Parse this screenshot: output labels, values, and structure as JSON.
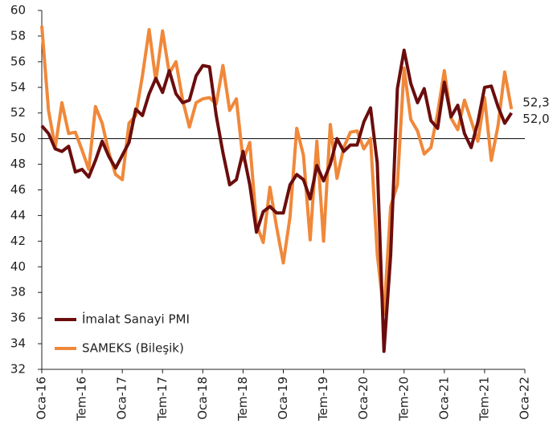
{
  "chart_data": {
    "type": "line",
    "categories": [
      "Oca-16",
      null,
      null,
      null,
      null,
      null,
      "Tem-16",
      null,
      null,
      null,
      null,
      null,
      "Oca-17",
      null,
      null,
      null,
      null,
      null,
      "Tem-17",
      null,
      null,
      null,
      null,
      null,
      "Oca-18",
      null,
      null,
      null,
      null,
      null,
      "Tem-18",
      null,
      null,
      null,
      null,
      null,
      "Oca-19",
      null,
      null,
      null,
      null,
      null,
      "Tem-19",
      null,
      null,
      null,
      null,
      null,
      "Oca-20",
      null,
      null,
      null,
      null,
      null,
      "Tem-20",
      null,
      null,
      null,
      null,
      null,
      "Oca-21",
      null,
      null,
      null,
      null,
      null,
      "Tem-21",
      null,
      null,
      null,
      null,
      null,
      "Oca-22"
    ],
    "series": [
      {
        "name": "İmalat Sanayi PMI",
        "color": "#6b0d0d",
        "values": [
          51.0,
          50.4,
          49.2,
          49.0,
          49.4,
          47.4,
          47.6,
          47.0,
          48.3,
          49.8,
          48.6,
          47.7,
          48.7,
          49.7,
          52.3,
          51.8,
          53.5,
          54.7,
          53.6,
          55.3,
          53.5,
          52.8,
          53.0,
          54.9,
          55.7,
          55.6,
          51.8,
          48.9,
          46.4,
          46.8,
          49.0,
          46.4,
          42.7,
          44.3,
          44.7,
          44.2,
          44.2,
          46.4,
          47.2,
          46.8,
          45.3,
          47.9,
          46.7,
          48.0,
          50.0,
          49.0,
          49.5,
          49.5,
          51.3,
          52.4,
          48.1,
          33.4,
          40.9,
          53.9,
          56.9,
          54.3,
          52.8,
          53.9,
          51.4,
          50.8,
          54.4,
          51.7,
          52.6,
          50.4,
          49.3,
          51.3,
          54.0,
          54.1,
          52.5,
          51.2,
          52.0,
          null,
          null
        ],
        "value_labels": [
          null,
          null,
          null,
          null,
          null,
          null,
          null,
          null,
          null,
          null,
          null,
          null,
          null,
          null,
          null,
          null,
          null,
          null,
          null,
          null,
          null,
          null,
          null,
          null,
          null,
          null,
          null,
          null,
          null,
          null,
          null,
          null,
          null,
          null,
          null,
          null,
          null,
          null,
          null,
          null,
          null,
          null,
          null,
          null,
          null,
          null,
          null,
          null,
          null,
          null,
          null,
          null,
          null,
          null,
          null,
          null,
          null,
          null,
          null,
          null,
          null,
          null,
          null,
          null,
          null,
          null,
          null,
          null,
          null,
          null,
          "52,0",
          null,
          null
        ]
      },
      {
        "name": "SAMEKS (Bileşik)",
        "color": "#f0883a",
        "values": [
          58.8,
          52.2,
          49.3,
          52.8,
          50.4,
          50.5,
          49.1,
          47.6,
          52.5,
          51.2,
          48.9,
          47.2,
          46.8,
          51.2,
          51.8,
          54.9,
          58.5,
          54.5,
          58.4,
          55.1,
          56.0,
          53.0,
          50.9,
          52.8,
          53.1,
          53.2,
          52.7,
          55.7,
          52.2,
          53.1,
          48.3,
          49.7,
          43.3,
          41.9,
          46.2,
          43.1,
          40.3,
          43.9,
          50.8,
          48.7,
          42.1,
          49.8,
          42.0,
          51.1,
          46.9,
          49.3,
          50.5,
          50.6,
          49.2,
          50.0,
          41.0,
          36.3,
          44.7,
          46.4,
          55.5,
          51.5,
          50.6,
          48.8,
          49.3,
          52.0,
          55.3,
          51.6,
          50.7,
          53.0,
          51.4,
          49.8,
          53.2,
          48.3,
          51.0,
          55.2,
          52.3,
          null,
          null
        ],
        "value_labels": [
          null,
          null,
          null,
          null,
          null,
          null,
          null,
          null,
          null,
          null,
          null,
          null,
          null,
          null,
          null,
          null,
          null,
          null,
          null,
          null,
          null,
          null,
          null,
          null,
          null,
          null,
          null,
          null,
          null,
          null,
          null,
          null,
          null,
          null,
          null,
          null,
          null,
          null,
          null,
          null,
          null,
          null,
          null,
          null,
          null,
          null,
          null,
          null,
          null,
          null,
          null,
          null,
          null,
          null,
          null,
          null,
          null,
          null,
          null,
          null,
          null,
          null,
          null,
          null,
          null,
          null,
          null,
          null,
          null,
          null,
          "52,3",
          null,
          null
        ]
      }
    ],
    "ylim": [
      32,
      60
    ],
    "yticks": [
      32,
      34,
      36,
      38,
      40,
      42,
      44,
      46,
      48,
      50,
      52,
      54,
      56,
      58,
      60
    ],
    "reference_line": 50,
    "legend": "lower left"
  }
}
